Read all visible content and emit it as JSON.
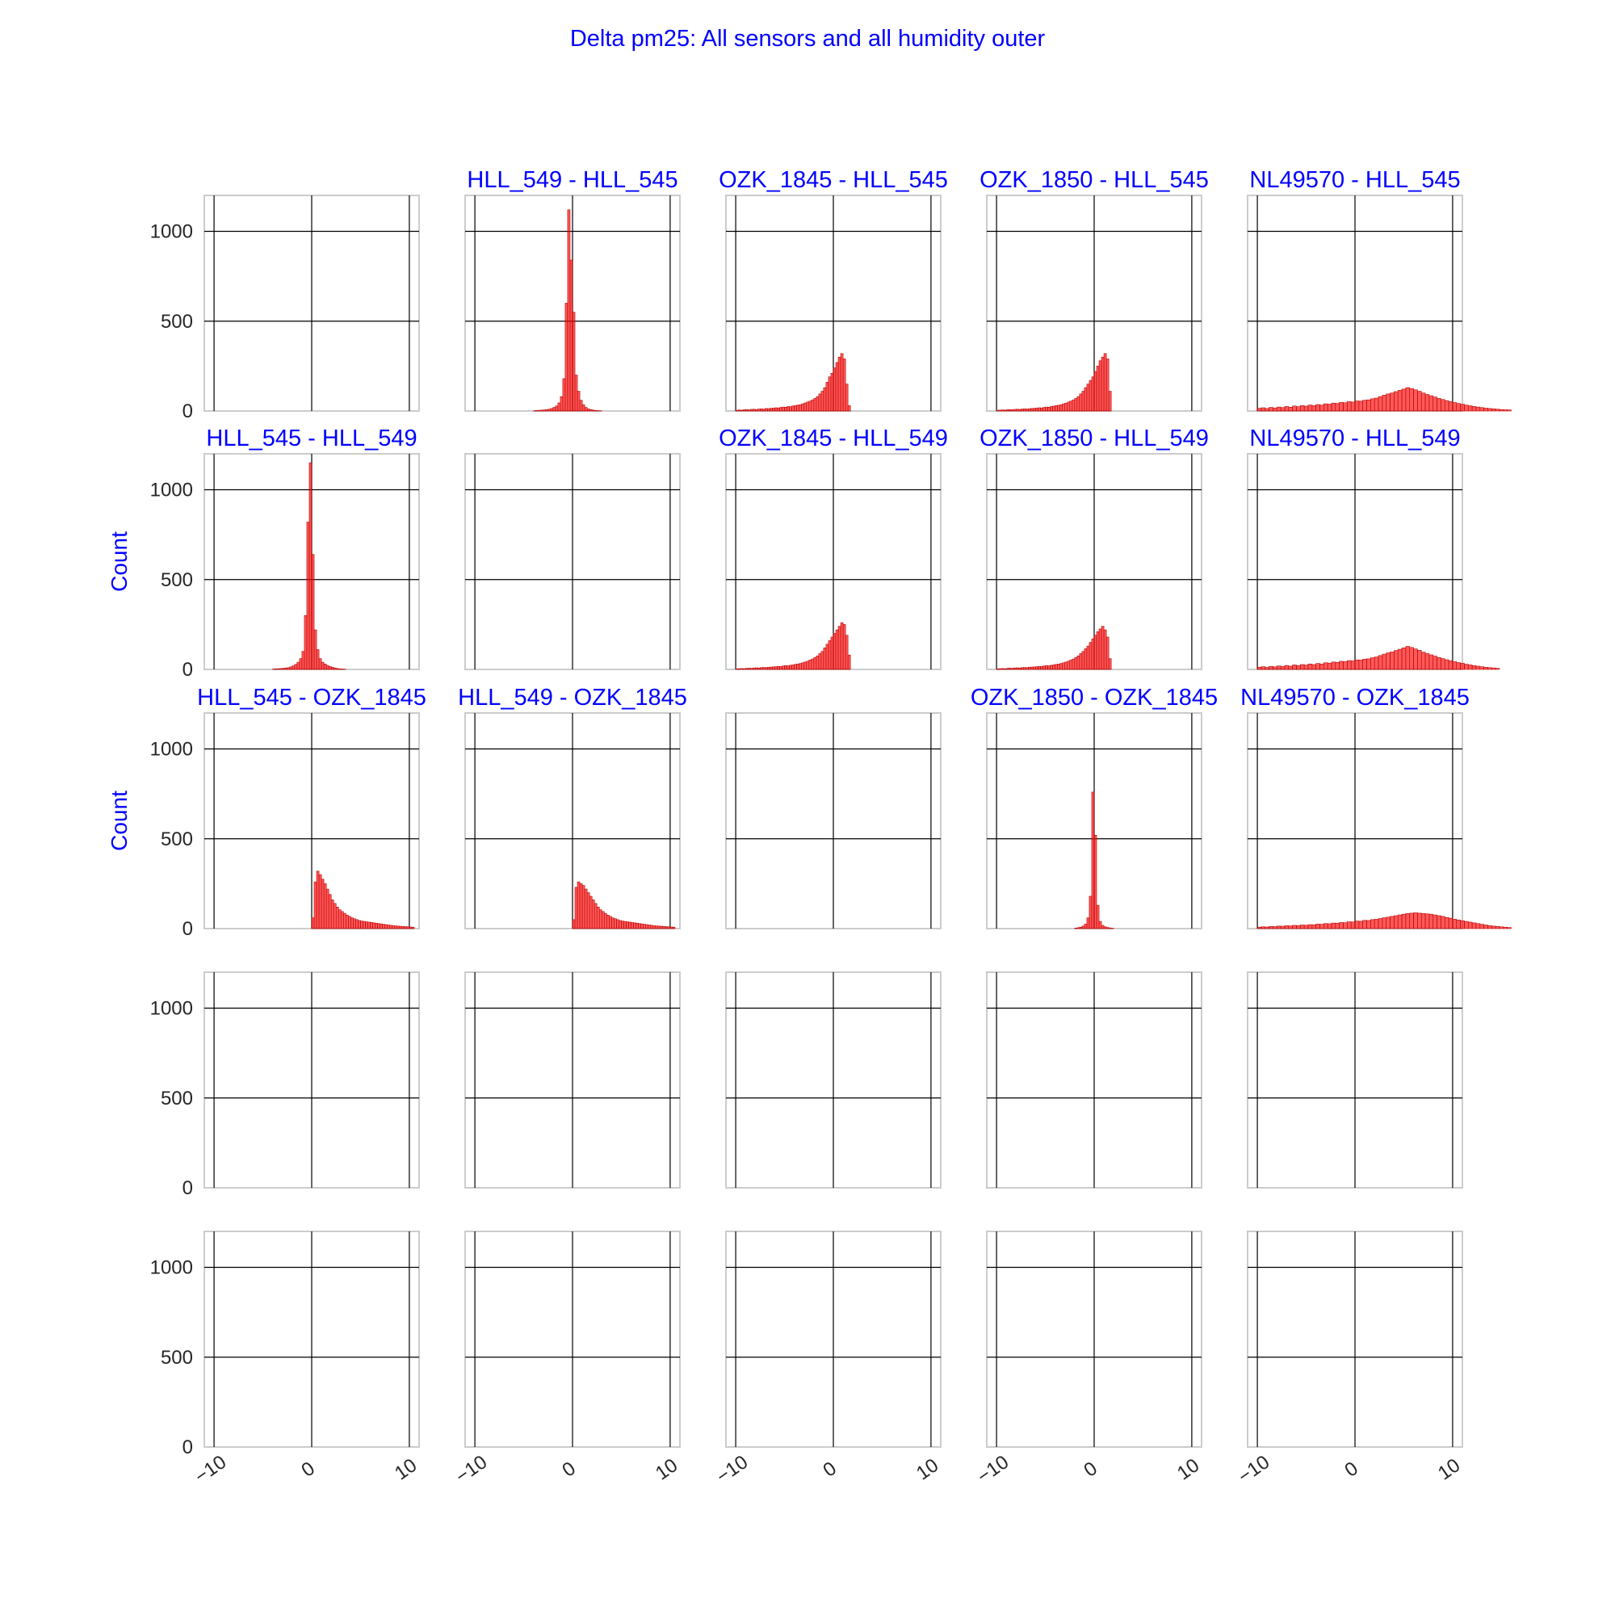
{
  "suptitle": "Delta pm25: All sensors and all humidity outer",
  "chart_data": {
    "type": "histogram-grid",
    "grid": {
      "rows": 5,
      "cols": 5,
      "sharex": true,
      "sharey": true
    },
    "xlim": [
      -11,
      11
    ],
    "ylim": [
      0,
      1200
    ],
    "xticks": [
      -10,
      0,
      10
    ],
    "yticks": [
      0,
      500,
      1000
    ],
    "ylabel": "Count",
    "ylabel_rows": [
      1,
      2
    ],
    "bar_color": "#ff0000",
    "panel_titles": [
      [
        "",
        "HLL_549 - HLL_545",
        "OZK_1845 - HLL_545",
        "OZK_1850 - HLL_545",
        "NL49570 - HLL_545"
      ],
      [
        "HLL_545 - HLL_549",
        "",
        "OZK_1845 - HLL_549",
        "OZK_1850 - HLL_549",
        "NL49570 - HLL_549"
      ],
      [
        "HLL_545 - OZK_1845",
        "HLL_549 - OZK_1845",
        "",
        "OZK_1850 - OZK_1845",
        "NL49570 - OZK_1845"
      ],
      [
        "",
        "",
        "",
        "",
        ""
      ],
      [
        "",
        "",
        "",
        "",
        ""
      ]
    ],
    "histograms": [
      {
        "row": 0,
        "col": 1,
        "bin_start": -4.0,
        "bin_width": 0.25,
        "counts": [
          2,
          3,
          4,
          5,
          6,
          8,
          10,
          14,
          20,
          28,
          45,
          80,
          180,
          600,
          1120,
          840,
          550,
          200,
          110,
          60,
          35,
          20,
          12,
          8,
          5,
          3,
          2,
          1
        ]
      },
      {
        "row": 0,
        "col": 2,
        "bin_start": -10.0,
        "bin_width": 0.25,
        "counts": [
          4,
          6,
          5,
          7,
          8,
          6,
          9,
          10,
          8,
          11,
          12,
          10,
          14,
          13,
          15,
          16,
          18,
          17,
          20,
          22,
          21,
          25,
          24,
          28,
          30,
          33,
          35,
          40,
          45,
          50,
          55,
          62,
          70,
          80,
          95,
          110,
          130,
          160,
          190,
          210,
          240,
          270,
          300,
          320,
          290,
          150,
          30
        ]
      },
      {
        "row": 0,
        "col": 3,
        "bin_start": -10.0,
        "bin_width": 0.25,
        "counts": [
          4,
          5,
          6,
          5,
          7,
          8,
          7,
          9,
          10,
          9,
          11,
          12,
          11,
          13,
          14,
          15,
          16,
          18,
          17,
          20,
          22,
          21,
          25,
          27,
          30,
          32,
          35,
          40,
          44,
          50,
          55,
          62,
          70,
          80,
          95,
          110,
          130,
          150,
          170,
          190,
          220,
          250,
          280,
          300,
          320,
          290,
          110
        ]
      },
      {
        "row": 0,
        "col": 4,
        "bin_start": -10.0,
        "bin_width": 0.4,
        "counts": [
          15,
          18,
          14,
          20,
          17,
          22,
          19,
          25,
          21,
          28,
          24,
          30,
          27,
          33,
          30,
          36,
          33,
          40,
          38,
          44,
          42,
          48,
          46,
          52,
          50,
          56,
          55,
          60,
          62,
          68,
          72,
          80,
          88,
          95,
          100,
          108,
          115,
          122,
          130,
          125,
          118,
          110,
          100,
          92,
          85,
          78,
          70,
          64,
          58,
          52,
          47,
          42,
          38,
          33,
          29,
          25,
          22,
          19,
          16,
          14,
          12,
          10,
          8,
          7,
          6
        ]
      },
      {
        "row": 1,
        "col": 0,
        "bin_start": -4.0,
        "bin_width": 0.25,
        "counts": [
          2,
          3,
          4,
          5,
          6,
          8,
          10,
          14,
          20,
          28,
          40,
          60,
          100,
          300,
          820,
          1150,
          640,
          220,
          110,
          60,
          40,
          30,
          22,
          16,
          12,
          8,
          5,
          3,
          2,
          1
        ]
      },
      {
        "row": 1,
        "col": 2,
        "bin_start": -10.0,
        "bin_width": 0.25,
        "counts": [
          3,
          4,
          5,
          4,
          6,
          7,
          6,
          8,
          9,
          8,
          10,
          11,
          10,
          12,
          13,
          14,
          15,
          17,
          16,
          19,
          21,
          20,
          23,
          25,
          28,
          30,
          33,
          37,
          41,
          46,
          52,
          58,
          66,
          75,
          88,
          100,
          120,
          140,
          160,
          180,
          200,
          220,
          240,
          260,
          250,
          190,
          80
        ]
      },
      {
        "row": 1,
        "col": 3,
        "bin_start": -10.0,
        "bin_width": 0.25,
        "counts": [
          3,
          4,
          5,
          4,
          6,
          7,
          6,
          8,
          9,
          8,
          10,
          11,
          10,
          12,
          13,
          14,
          15,
          17,
          16,
          19,
          21,
          20,
          23,
          25,
          28,
          30,
          33,
          37,
          41,
          46,
          52,
          58,
          66,
          75,
          88,
          100,
          115,
          130,
          150,
          170,
          190,
          210,
          225,
          240,
          220,
          180,
          60
        ]
      },
      {
        "row": 1,
        "col": 4,
        "bin_start": -10.0,
        "bin_width": 0.4,
        "counts": [
          12,
          15,
          11,
          17,
          14,
          19,
          16,
          22,
          18,
          25,
          21,
          27,
          24,
          30,
          27,
          33,
          30,
          37,
          35,
          41,
          39,
          45,
          43,
          49,
          47,
          53,
          52,
          57,
          59,
          65,
          69,
          77,
          85,
          92,
          97,
          105,
          112,
          120,
          128,
          122,
          114,
          106,
          96,
          88,
          81,
          74,
          66,
          60,
          54,
          48,
          43,
          38,
          34,
          29,
          25,
          21,
          18,
          15,
          12,
          10,
          8,
          6
        ]
      },
      {
        "row": 2,
        "col": 0,
        "bin_start": 0.0,
        "bin_width": 0.25,
        "counts": [
          60,
          260,
          320,
          300,
          275,
          250,
          220,
          190,
          160,
          140,
          120,
          105,
          95,
          85,
          75,
          68,
          60,
          55,
          50,
          45,
          42,
          40,
          38,
          36,
          34,
          32,
          30,
          28,
          26,
          24,
          22,
          20,
          18,
          16,
          15,
          14,
          13,
          12,
          11,
          10,
          9,
          8
        ]
      },
      {
        "row": 2,
        "col": 1,
        "bin_start": 0.0,
        "bin_width": 0.25,
        "counts": [
          50,
          230,
          260,
          250,
          240,
          220,
          200,
          180,
          160,
          140,
          120,
          105,
          95,
          85,
          75,
          68,
          60,
          55,
          50,
          45,
          42,
          40,
          38,
          36,
          34,
          32,
          30,
          28,
          26,
          24,
          22,
          20,
          18,
          16,
          15,
          14,
          13,
          12,
          11,
          10,
          9,
          8
        ]
      },
      {
        "row": 2,
        "col": 3,
        "bin_start": -2.0,
        "bin_width": 0.25,
        "counts": [
          3,
          5,
          8,
          14,
          25,
          60,
          180,
          760,
          520,
          130,
          40,
          18,
          10,
          6,
          4,
          2
        ]
      },
      {
        "row": 2,
        "col": 4,
        "bin_start": -10.0,
        "bin_width": 0.4,
        "counts": [
          8,
          10,
          9,
          12,
          11,
          14,
          13,
          16,
          15,
          18,
          17,
          20,
          19,
          22,
          21,
          25,
          24,
          28,
          27,
          31,
          30,
          34,
          33,
          38,
          37,
          42,
          41,
          46,
          45,
          50,
          52,
          56,
          60,
          64,
          68,
          72,
          76,
          80,
          84,
          86,
          88,
          86,
          84,
          82,
          80,
          76,
          72,
          68,
          62,
          58,
          52,
          48,
          44,
          40,
          36,
          32,
          28,
          24,
          20,
          17,
          14,
          12,
          10,
          8,
          6
        ]
      }
    ]
  }
}
